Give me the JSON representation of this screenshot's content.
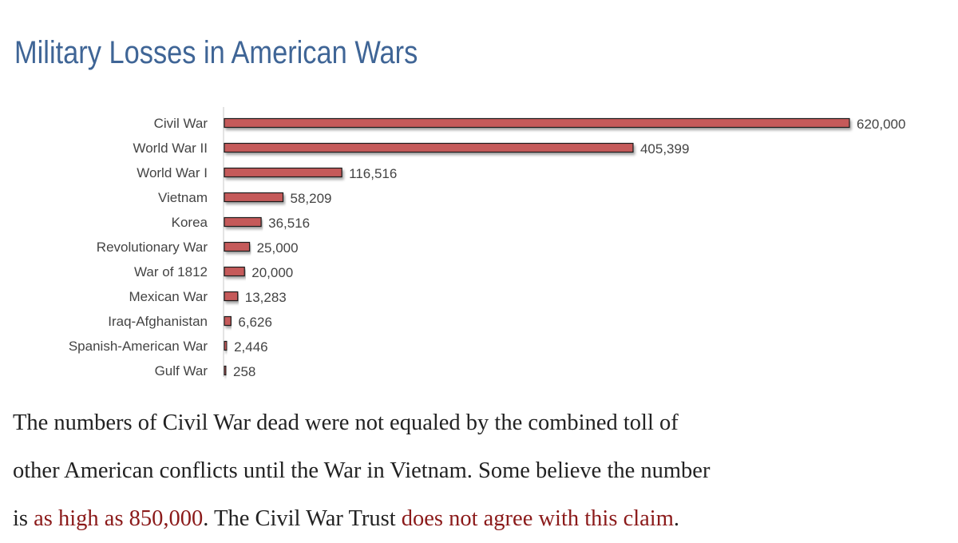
{
  "title": "Military Losses in American Wars",
  "colors": {
    "title": "#3f6596",
    "bar": "#c55a5a",
    "link": "#8b1a1a",
    "text": "#222222"
  },
  "chart_data": {
    "type": "bar",
    "orientation": "horizontal",
    "title": "",
    "xlabel": "",
    "ylabel": "",
    "categories": [
      "Civil War",
      "World War II",
      "World War I",
      "Vietnam",
      "Korea",
      "Revolutionary War",
      "War of 1812",
      "Mexican War",
      "Iraq-Afghanistan",
      "Spanish-American War",
      "Gulf War"
    ],
    "values": [
      620000,
      405399,
      116516,
      58209,
      36516,
      25000,
      20000,
      13283,
      6626,
      2446,
      258
    ],
    "value_labels": [
      "620,000",
      "405,399",
      "116,516",
      "58,209",
      "36,516",
      "25,000",
      "20,000",
      "13,283",
      "6,626",
      "2,446",
      "258"
    ],
    "xlim": [
      0,
      620000
    ],
    "grid": false,
    "legend": "none"
  },
  "paragraph": {
    "line1": "The numbers of Civil War dead were not equaled by the combined toll of",
    "line2": "other American conflicts until the War in Vietnam.  Some believe the number",
    "line3_pre": "is ",
    "link1": "as high as 850,000",
    "line3_mid": ".  The Civil War Trust ",
    "link2": "does not agree with this claim",
    "line3_end": "."
  }
}
